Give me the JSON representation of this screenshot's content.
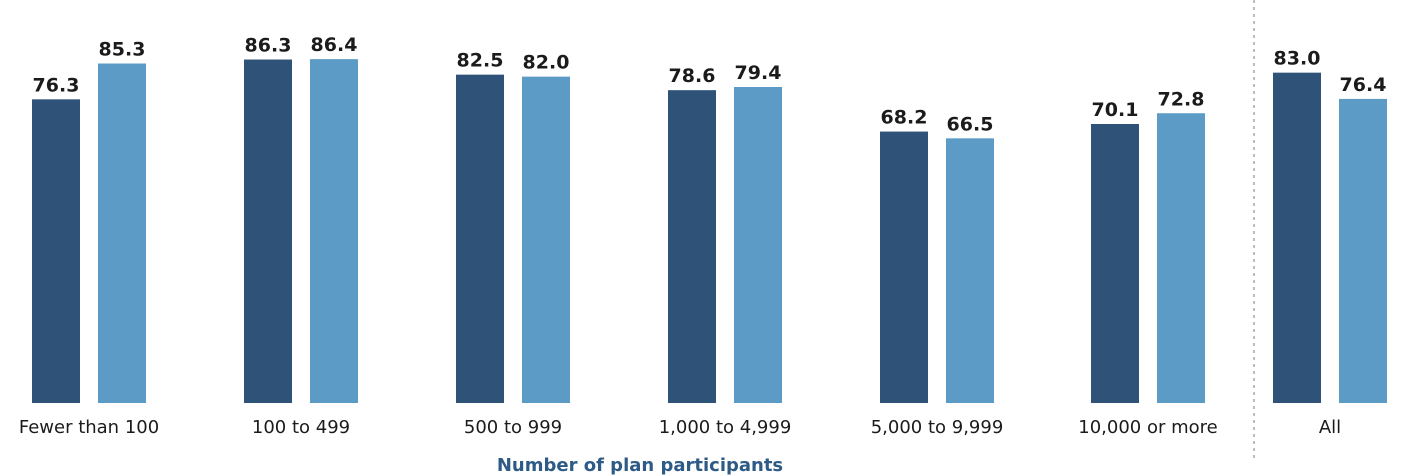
{
  "chart_data": {
    "type": "bar",
    "categories": [
      "Fewer than 100",
      "100 to 499",
      "500 to 999",
      "1,000 to 4,999",
      "5,000 to 9,999",
      "10,000 or more",
      "All"
    ],
    "series": [
      {
        "values": [
          76.3,
          86.3,
          82.5,
          78.6,
          68.2,
          70.1,
          83.0
        ],
        "color": "#2e5278"
      },
      {
        "values": [
          85.3,
          86.4,
          82.0,
          79.4,
          66.5,
          72.8,
          76.4
        ],
        "color": "#5b9bc6"
      }
    ],
    "value_labels": [
      [
        "76.3",
        "86.3",
        "82.5",
        "78.6",
        "68.2",
        "70.1",
        "83.0"
      ],
      [
        "85.3",
        "86.4",
        "82.0",
        "79.4",
        "66.5",
        "72.8",
        "76.4"
      ]
    ],
    "xlabel": "Number of plan participants",
    "ylabel": "",
    "ylim": [
      0,
      100
    ],
    "grid": false,
    "separator_before_category": "All"
  }
}
